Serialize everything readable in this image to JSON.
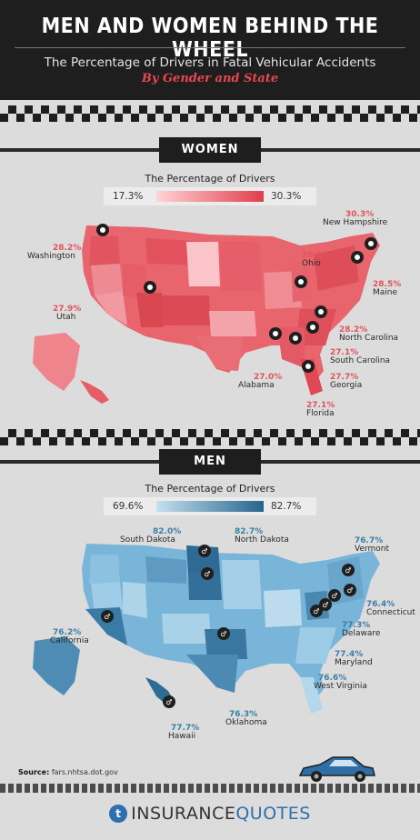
{
  "header": {
    "title": "MEN AND WOMEN BEHIND THE WHEEL",
    "subtitle": "The Percentage of Drivers in Fatal Vehicular Accidents",
    "tagline": "By Gender and State"
  },
  "women": {
    "heading": "WOMEN",
    "legend_title": "The Percentage of Drivers",
    "legend_low": "17.3%",
    "legend_high": "30.3%",
    "colors": {
      "low": "#ffd4d7",
      "high": "#e23d4a"
    },
    "states": [
      {
        "pct": "28.2%",
        "name": "Washington"
      },
      {
        "pct": "30.3%",
        "name": "New Hampshire"
      },
      {
        "pct": "26.8%",
        "name": "Ohio"
      },
      {
        "pct": "28.5%",
        "name": "Maine"
      },
      {
        "pct": "27.9%",
        "name": "Utah"
      },
      {
        "pct": "28.2%",
        "name": "North Carolina"
      },
      {
        "pct": "27.1%",
        "name": "South Carolina"
      },
      {
        "pct": "27.0%",
        "name": "Alabama"
      },
      {
        "pct": "27.7%",
        "name": "Georgia"
      },
      {
        "pct": "27.1%",
        "name": "Florida"
      }
    ]
  },
  "men": {
    "heading": "MEN",
    "legend_title": "The Percentage of Drivers",
    "legend_low": "69.6%",
    "legend_high": "82.7%",
    "colors": {
      "low": "#c4e0f0",
      "high": "#27648c"
    },
    "states": [
      {
        "pct": "82.0%",
        "name": "South Dakota"
      },
      {
        "pct": "82.7%",
        "name": "North Dakota"
      },
      {
        "pct": "76.7%",
        "name": "Vermont"
      },
      {
        "pct": "76.4%",
        "name": "Connecticut"
      },
      {
        "pct": "77.3%",
        "name": "Delaware"
      },
      {
        "pct": "76.2%",
        "name": "California"
      },
      {
        "pct": "77.4%",
        "name": "Maryland"
      },
      {
        "pct": "76.6%",
        "name": "West Virginia"
      },
      {
        "pct": "76.3%",
        "name": "Oklahoma"
      },
      {
        "pct": "77.7%",
        "name": "Hawaii"
      }
    ]
  },
  "footer": {
    "source_label": "Source:",
    "source_value": "fars.nhtsa.dot.gov",
    "logo_mark": "t",
    "logo_part1": "INSURANCE",
    "logo_part2": "QUOTES"
  }
}
